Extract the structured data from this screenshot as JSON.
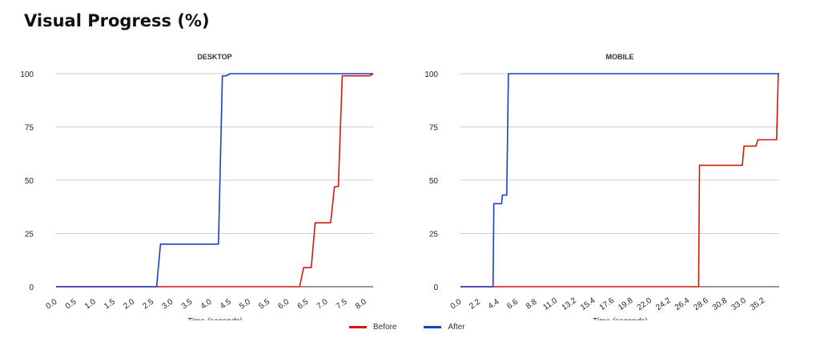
{
  "page": {
    "title": "Visual Progress (%)"
  },
  "colors": {
    "before": "#d11b0c",
    "after": "#1a3fc9",
    "grid": "#cccccc",
    "axis": "#333333",
    "text": "#222222"
  },
  "legend": {
    "before": "Before",
    "after": "After"
  },
  "chart_data": [
    {
      "type": "line",
      "id": "desktop",
      "title": "DESKTOP",
      "xlabel": "Time (seconds)",
      "ylabel": "",
      "xlim": [
        0.0,
        8.2
      ],
      "ylim": [
        0,
        100
      ],
      "xticks": [
        "0.0",
        "0.5",
        "1.0",
        "1.5",
        "2.0",
        "2.5",
        "3.0",
        "3.5",
        "4.0",
        "4.5",
        "5.0",
        "5.5",
        "6.0",
        "6.5",
        "7.0",
        "7.5",
        "8.0"
      ],
      "yticks": [
        0,
        25,
        50,
        75,
        100
      ],
      "grid": true,
      "series": [
        {
          "name": "Before",
          "color": "#d11b0c",
          "points": [
            [
              0,
              0
            ],
            [
              6.3,
              0
            ],
            [
              6.4,
              9
            ],
            [
              6.6,
              9
            ],
            [
              6.7,
              30
            ],
            [
              7.1,
              30
            ],
            [
              7.2,
              47
            ],
            [
              7.3,
              47
            ],
            [
              7.4,
              99
            ],
            [
              8.1,
              99
            ],
            [
              8.2,
              100
            ]
          ]
        },
        {
          "name": "After",
          "color": "#1a3fc9",
          "points": [
            [
              0,
              0
            ],
            [
              2.6,
              0
            ],
            [
              2.7,
              20
            ],
            [
              4.2,
              20
            ],
            [
              4.3,
              99
            ],
            [
              4.4,
              99
            ],
            [
              4.5,
              100
            ],
            [
              8.2,
              100
            ]
          ]
        }
      ]
    },
    {
      "type": "line",
      "id": "mobile",
      "title": "MOBILE",
      "xlabel": "Time (seconds)",
      "ylabel": "",
      "xlim": [
        0.0,
        37.2
      ],
      "ylim": [
        0,
        100
      ],
      "xticks": [
        "0.0",
        "2.2",
        "4.4",
        "6.6",
        "8.8",
        "11.0",
        "13.2",
        "15.4",
        "17.6",
        "19.8",
        "22.0",
        "24.2",
        "26.4",
        "28.6",
        "30.8",
        "33.0",
        "35.2"
      ],
      "yticks": [
        0,
        25,
        50,
        75,
        100
      ],
      "grid": true,
      "series": [
        {
          "name": "Before",
          "color": "#d11b0c",
          "points": [
            [
              0,
              0
            ],
            [
              27.8,
              0
            ],
            [
              27.9,
              57
            ],
            [
              32.9,
              57
            ],
            [
              33.1,
              66
            ],
            [
              34.5,
              66
            ],
            [
              34.7,
              69
            ],
            [
              36.9,
              69
            ],
            [
              37.1,
              100
            ]
          ]
        },
        {
          "name": "After",
          "color": "#1a3fc9",
          "points": [
            [
              0,
              0
            ],
            [
              3.8,
              0
            ],
            [
              3.9,
              39
            ],
            [
              4.8,
              39
            ],
            [
              4.9,
              43
            ],
            [
              5.4,
              43
            ],
            [
              5.6,
              100
            ],
            [
              37.2,
              100
            ]
          ]
        }
      ]
    }
  ]
}
